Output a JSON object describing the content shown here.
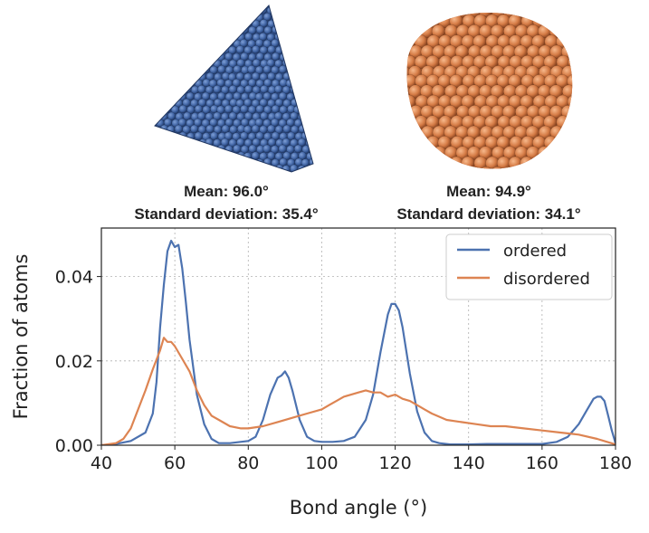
{
  "particles": {
    "ordered_icon": "tetrahedral-nanoparticle",
    "disordered_icon": "disordered-nanoparticle",
    "ordered_color": "#4468a8",
    "disordered_color": "#d57b45"
  },
  "stats": {
    "ordered": {
      "mean": "Mean: 96.0°",
      "std": "Standard deviation: 35.4°"
    },
    "disordered": {
      "mean": "Mean: 94.9°",
      "std": "Standard deviation: 34.1°"
    }
  },
  "chart_data": {
    "type": "line",
    "xlabel": "Bond angle (°)",
    "ylabel": "Fraction of atoms",
    "xlim": [
      40,
      180
    ],
    "ylim": [
      0,
      0.0515
    ],
    "xticks": [
      40,
      60,
      80,
      100,
      120,
      140,
      160,
      180
    ],
    "xtick_labels": [
      "40",
      "60",
      "80",
      "100",
      "120",
      "140",
      "160",
      "180"
    ],
    "yticks": [
      0,
      0.02,
      0.04
    ],
    "ytick_labels": [
      "0.00",
      "0.02",
      "0.04"
    ],
    "grid": true,
    "legend_position": "top-right",
    "series": [
      {
        "name": "ordered",
        "color": "#4c72b0",
        "x": [
          40,
          44,
          48,
          52,
          54,
          55,
          56,
          57,
          58,
          59,
          60,
          61,
          62,
          63,
          64,
          66,
          68,
          70,
          72,
          75,
          80,
          82,
          84,
          86,
          88,
          89,
          90,
          91,
          92,
          94,
          96,
          98,
          100,
          103,
          106,
          109,
          112,
          114,
          116,
          118,
          119,
          120,
          121,
          122,
          124,
          126,
          128,
          130,
          132,
          135,
          140,
          145,
          150,
          155,
          160,
          164,
          167,
          170,
          172,
          174,
          175,
          176,
          177,
          178,
          179,
          180
        ],
        "y": [
          0.0,
          0.0003,
          0.001,
          0.003,
          0.0075,
          0.015,
          0.028,
          0.038,
          0.046,
          0.0485,
          0.047,
          0.0475,
          0.042,
          0.034,
          0.025,
          0.012,
          0.005,
          0.0015,
          0.0005,
          0.0005,
          0.001,
          0.002,
          0.006,
          0.012,
          0.016,
          0.0165,
          0.0175,
          0.016,
          0.013,
          0.006,
          0.002,
          0.001,
          0.0008,
          0.0008,
          0.001,
          0.002,
          0.006,
          0.012,
          0.022,
          0.031,
          0.0335,
          0.0335,
          0.032,
          0.028,
          0.017,
          0.008,
          0.003,
          0.001,
          0.0005,
          0.0002,
          0.0002,
          0.0003,
          0.0003,
          0.0003,
          0.0003,
          0.0008,
          0.002,
          0.005,
          0.008,
          0.011,
          0.0115,
          0.0115,
          0.0105,
          0.007,
          0.0035,
          0.0005
        ]
      },
      {
        "name": "disordered",
        "color": "#dd8452",
        "x": [
          40,
          44,
          46,
          48,
          50,
          52,
          54,
          56,
          57,
          58,
          59,
          60,
          62,
          64,
          66,
          68,
          70,
          72,
          75,
          78,
          80,
          84,
          88,
          92,
          96,
          100,
          102,
          104,
          106,
          108,
          110,
          112,
          114,
          116,
          118,
          120,
          122,
          124,
          126,
          128,
          130,
          134,
          138,
          142,
          146,
          150,
          155,
          160,
          165,
          170,
          175,
          178,
          180
        ],
        "y": [
          0.0,
          0.0005,
          0.0015,
          0.004,
          0.0085,
          0.013,
          0.018,
          0.0225,
          0.0255,
          0.0245,
          0.0245,
          0.0235,
          0.0205,
          0.0175,
          0.013,
          0.0095,
          0.007,
          0.006,
          0.0045,
          0.004,
          0.004,
          0.0045,
          0.0055,
          0.0065,
          0.0075,
          0.0085,
          0.0095,
          0.0105,
          0.0115,
          0.012,
          0.0125,
          0.013,
          0.0125,
          0.0125,
          0.0115,
          0.012,
          0.011,
          0.0105,
          0.0095,
          0.0085,
          0.0075,
          0.006,
          0.0055,
          0.005,
          0.0045,
          0.0045,
          0.004,
          0.0035,
          0.003,
          0.0025,
          0.0015,
          0.0007,
          0.0002
        ]
      }
    ]
  }
}
